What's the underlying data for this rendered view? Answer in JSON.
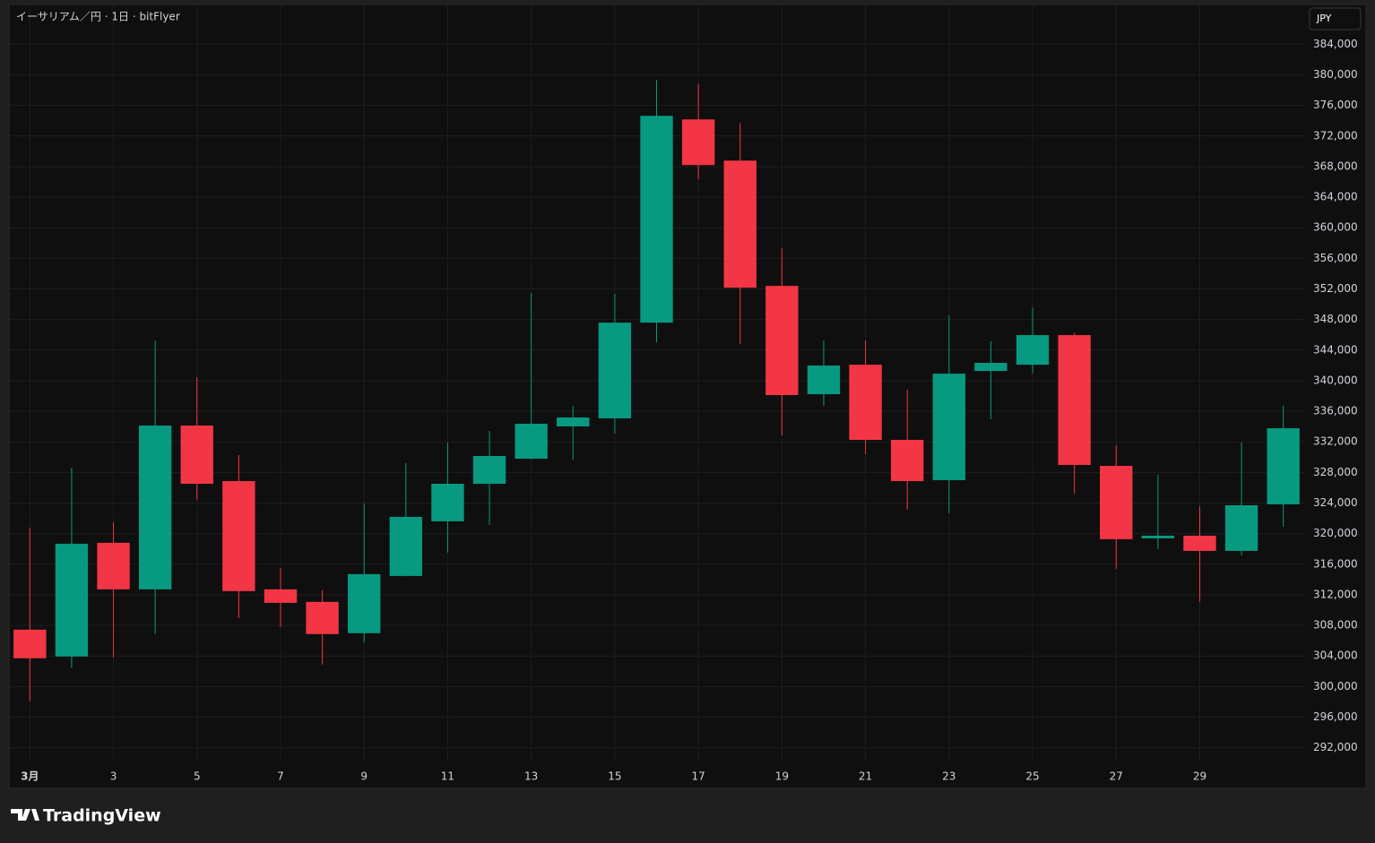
{
  "chart_data": {
    "type": "candlestick",
    "title": "イーサリアム／円 · 1日 · bitFlyer",
    "currency": "JPY",
    "source": "TradingView",
    "x": [
      1,
      2,
      3,
      4,
      5,
      6,
      7,
      8,
      9,
      10,
      11,
      12,
      13,
      14,
      15,
      16,
      17,
      18,
      19,
      20,
      21,
      22,
      23,
      24,
      25,
      26,
      27,
      28,
      29,
      30,
      31
    ],
    "open": [
      307440,
      303930,
      318800,
      312710,
      334130,
      326870,
      312710,
      311070,
      306980,
      314460,
      321610,
      326520,
      329800,
      334020,
      335070,
      347590,
      374170,
      368780,
      352400,
      338230,
      342090,
      332260,
      326990,
      341270,
      342090,
      345960,
      328860,
      319380,
      319730,
      317740,
      323830
    ],
    "high": [
      320800,
      328630,
      321490,
      345250,
      340450,
      330270,
      315520,
      312600,
      323950,
      329220,
      331910,
      333430,
      351460,
      336710,
      351340,
      379320,
      378850,
      373700,
      357310,
      345250,
      345250,
      338810,
      348530,
      345140,
      349580,
      346310,
      331560,
      327690,
      323600,
      331910,
      336710
    ],
    "low": [
      298100,
      302410,
      303810,
      306860,
      324420,
      308960,
      307790,
      302880,
      305800,
      314400,
      317510,
      321140,
      329700,
      329680,
      333080,
      345020,
      366320,
      344790,
      332840,
      336710,
      330390,
      323130,
      322660,
      334950,
      340920,
      325240,
      315400,
      317980,
      311070,
      317160,
      320900
    ],
    "close": [
      303700,
      318680,
      312710,
      334130,
      326520,
      312480,
      310950,
      306860,
      314700,
      322190,
      326520,
      330150,
      334370,
      335190,
      347590,
      374640,
      368200,
      352160,
      338110,
      341980,
      332260,
      326870,
      340920,
      342330,
      345960,
      328980,
      319270,
      319730,
      317740,
      323710,
      333780
    ],
    "up_color": "#089981",
    "down_color": "#f23645",
    "xlim": [
      0.5,
      31.5
    ],
    "xticks": [
      {
        "value": 1,
        "label": "3月"
      },
      3,
      5,
      7,
      9,
      11,
      13,
      15,
      17,
      19,
      21,
      23,
      25,
      27,
      29
    ],
    "ylim": [
      290200,
      389200
    ],
    "yticks": [
      {
        "value": 292000,
        "label": "292,000"
      },
      {
        "value": 296000,
        "label": "296,000"
      },
      {
        "value": 300000,
        "label": "300,000"
      },
      {
        "value": 304000,
        "label": "304,000"
      },
      {
        "value": 308000,
        "label": "308,000"
      },
      {
        "value": 312000,
        "label": "312,000"
      },
      {
        "value": 316000,
        "label": "316,000"
      },
      {
        "value": 320000,
        "label": "320,000"
      },
      {
        "value": 324000,
        "label": "324,000"
      },
      {
        "value": 328000,
        "label": "328,000"
      },
      {
        "value": 332000,
        "label": "332,000"
      },
      {
        "value": 336000,
        "label": "336,000"
      },
      {
        "value": 340000,
        "label": "340,000"
      },
      {
        "value": 344000,
        "label": "344,000"
      },
      {
        "value": 348000,
        "label": "348,000"
      },
      {
        "value": 352000,
        "label": "352,000"
      },
      {
        "value": 356000,
        "label": "356,000"
      },
      {
        "value": 360000,
        "label": "360,000"
      },
      {
        "value": 364000,
        "label": "364,000"
      },
      {
        "value": 368000,
        "label": "368,000"
      },
      {
        "value": 372000,
        "label": "372,000"
      },
      {
        "value": 376000,
        "label": "376,000"
      },
      {
        "value": 380000,
        "label": "380,000"
      },
      {
        "value": 384000,
        "label": "384,000"
      }
    ],
    "grid": true
  }
}
